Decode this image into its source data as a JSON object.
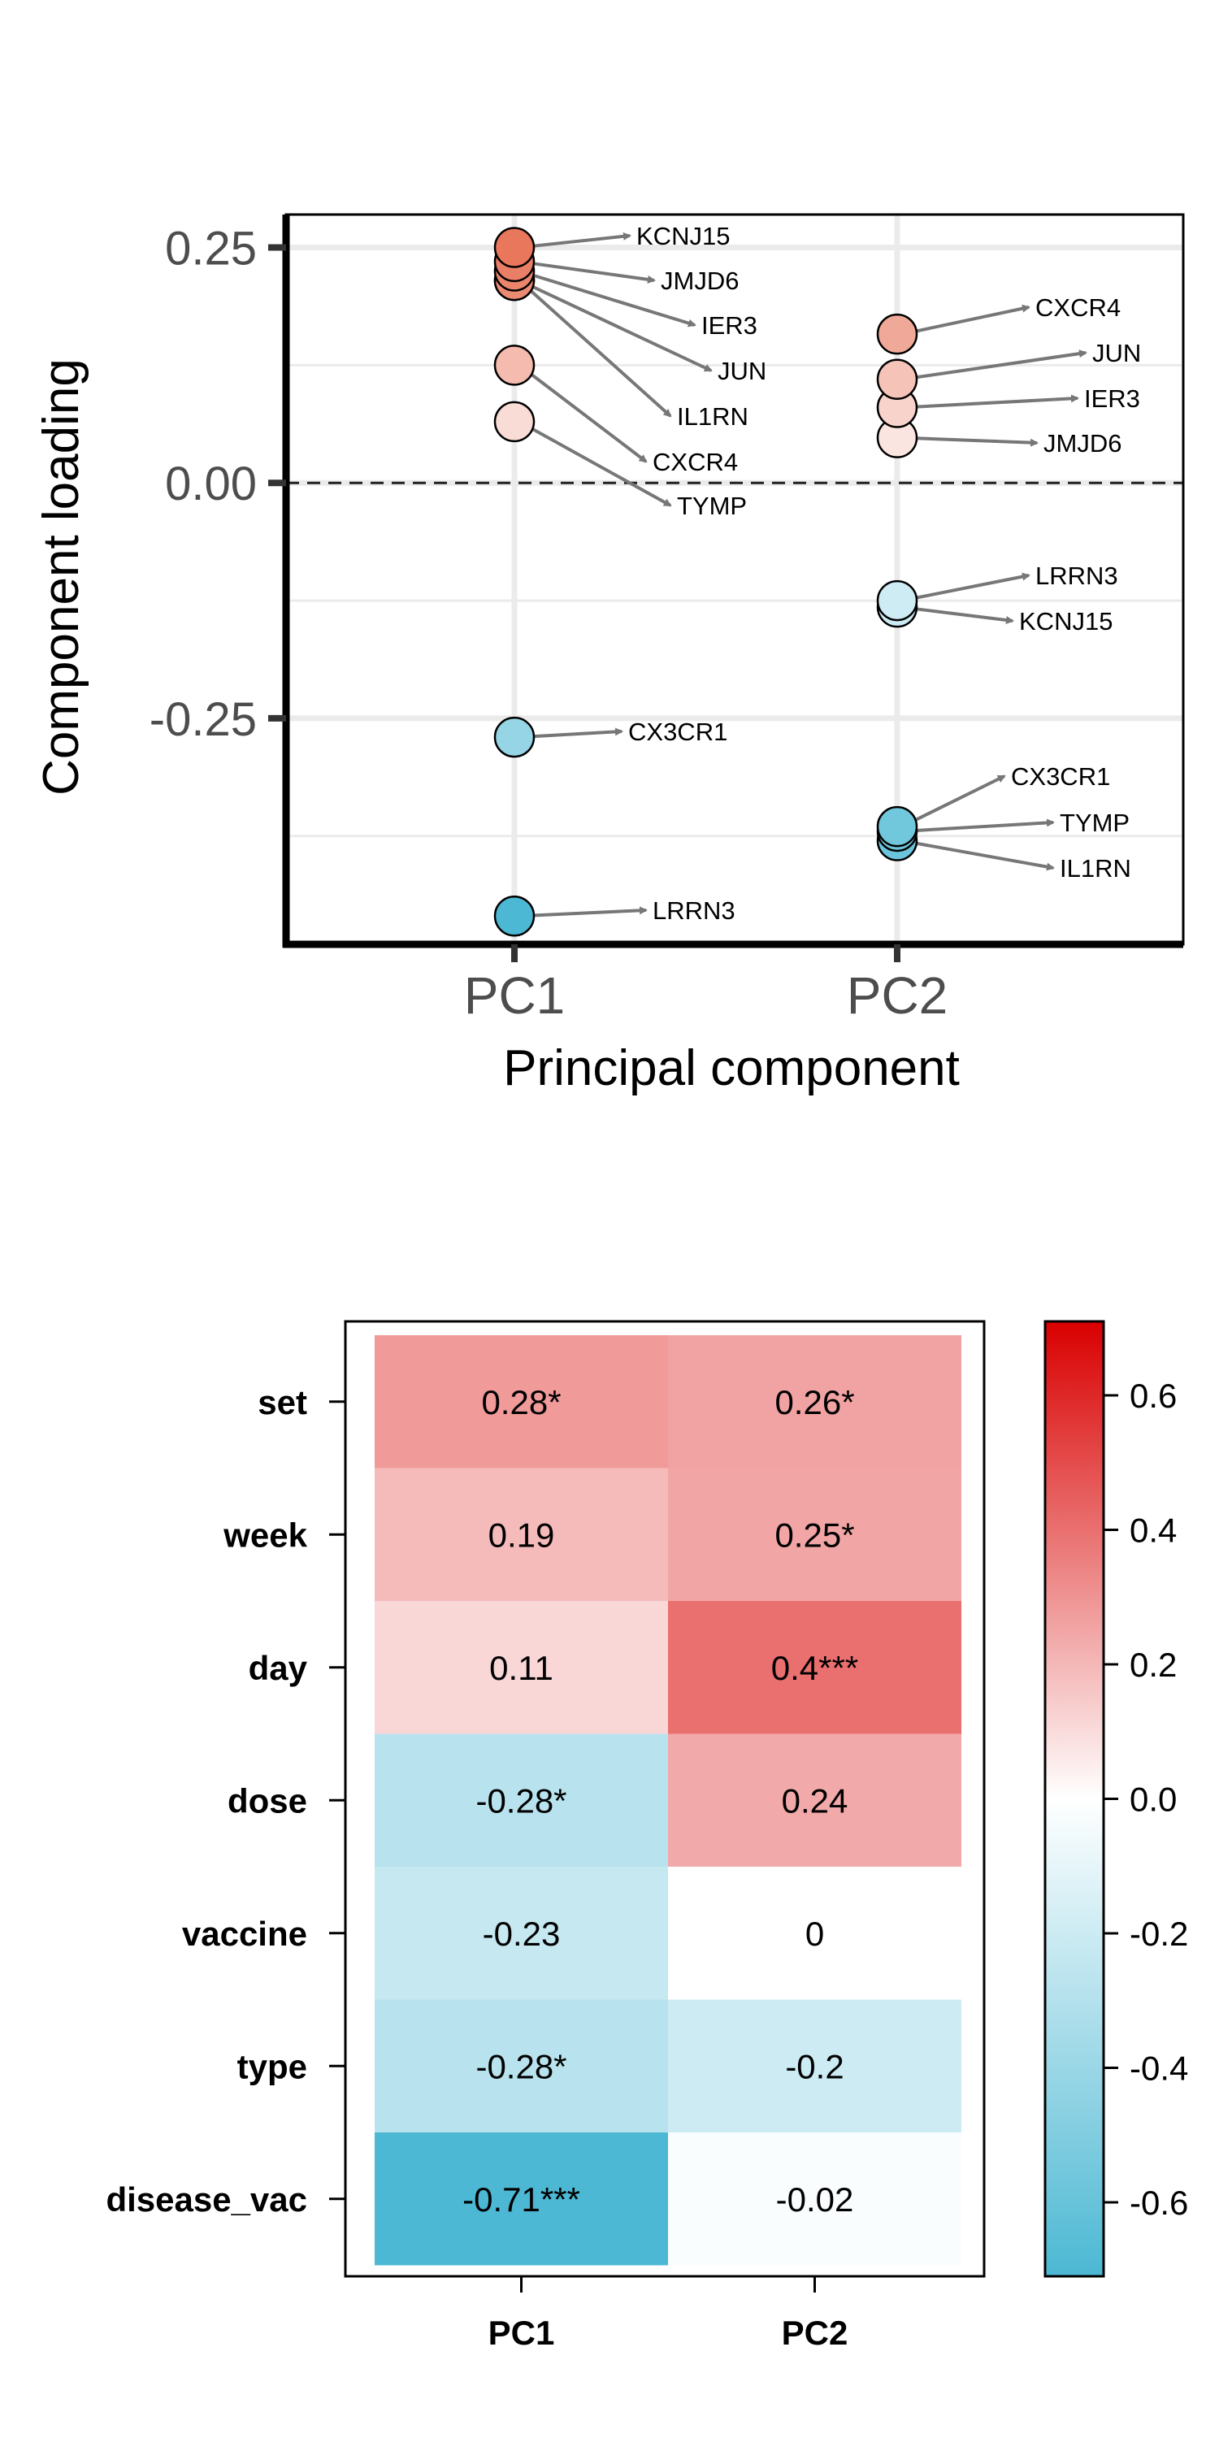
{
  "chart_data": [
    {
      "type": "scatter",
      "xlabel": "Principal component",
      "ylabel": "Component loading",
      "categories": [
        "PC1",
        "PC2"
      ],
      "ylim": [
        -0.49,
        0.285
      ],
      "yticks": [
        {
          "value": 0.25,
          "label": "0.25"
        },
        {
          "value": 0.0,
          "label": "0.00"
        },
        {
          "value": -0.25,
          "label": "-0.25"
        }
      ],
      "reference_line": {
        "value": 0.0,
        "style": "dashed"
      },
      "grid": true,
      "color_scale": {
        "low": "#4cb8d3",
        "mid": "#ffffff",
        "high": "#e8775c"
      },
      "series": [
        {
          "category": "PC1",
          "points": [
            {
              "gene": "KCNJ15",
              "value": 0.25
            },
            {
              "gene": "JMJD6",
              "value": 0.235
            },
            {
              "gene": "IER3",
              "value": 0.225
            },
            {
              "gene": "JUN",
              "value": 0.215
            },
            {
              "gene": "IL1RN",
              "value": 0.215
            },
            {
              "gene": "CXCR4",
              "value": 0.125
            },
            {
              "gene": "TYMP",
              "value": 0.065
            },
            {
              "gene": "CX3CR1",
              "value": -0.27
            },
            {
              "gene": "LRRN3",
              "value": -0.46
            }
          ]
        },
        {
          "category": "PC2",
          "points": [
            {
              "gene": "CXCR4",
              "value": 0.158
            },
            {
              "gene": "JUN",
              "value": 0.11
            },
            {
              "gene": "IER3",
              "value": 0.08
            },
            {
              "gene": "JMJD6",
              "value": 0.048
            },
            {
              "gene": "LRRN3",
              "value": -0.125
            },
            {
              "gene": "KCNJ15",
              "value": -0.132
            },
            {
              "gene": "CX3CR1",
              "value": -0.365
            },
            {
              "gene": "TYMP",
              "value": -0.37
            },
            {
              "gene": "IL1RN",
              "value": -0.38
            }
          ]
        }
      ]
    },
    {
      "type": "heatmap",
      "rows": [
        "set",
        "week",
        "day",
        "dose",
        "vaccine",
        "type",
        "disease_vac"
      ],
      "columns": [
        "PC1",
        "PC2"
      ],
      "values": [
        [
          0.28,
          0.26
        ],
        [
          0.19,
          0.25
        ],
        [
          0.11,
          0.4
        ],
        [
          -0.28,
          0.24
        ],
        [
          -0.23,
          0
        ],
        [
          -0.28,
          -0.2
        ],
        [
          -0.71,
          -0.02
        ]
      ],
      "cell_labels": [
        [
          "0.28*",
          "0.26*"
        ],
        [
          "0.19",
          "0.25*"
        ],
        [
          "0.11",
          "0.4***"
        ],
        [
          "-0.28*",
          "0.24"
        ],
        [
          "-0.23",
          "0"
        ],
        [
          "-0.28*",
          "-0.2"
        ],
        [
          "-0.71***",
          "-0.02"
        ]
      ],
      "colorbar": {
        "range": [
          -0.71,
          0.71
        ],
        "ticks": [
          {
            "value": 0.6,
            "label": "0.6"
          },
          {
            "value": 0.4,
            "label": "0.4"
          },
          {
            "value": 0.2,
            "label": "0.2"
          },
          {
            "value": 0.0,
            "label": "0.0"
          },
          {
            "value": -0.2,
            "label": "-0.2"
          },
          {
            "value": -0.4,
            "label": "-0.4"
          },
          {
            "value": -0.6,
            "label": "-0.6"
          }
        ],
        "low_color": "#4cb8d3",
        "mid_color": "#ffffff",
        "high_color": "#d90000"
      }
    }
  ]
}
